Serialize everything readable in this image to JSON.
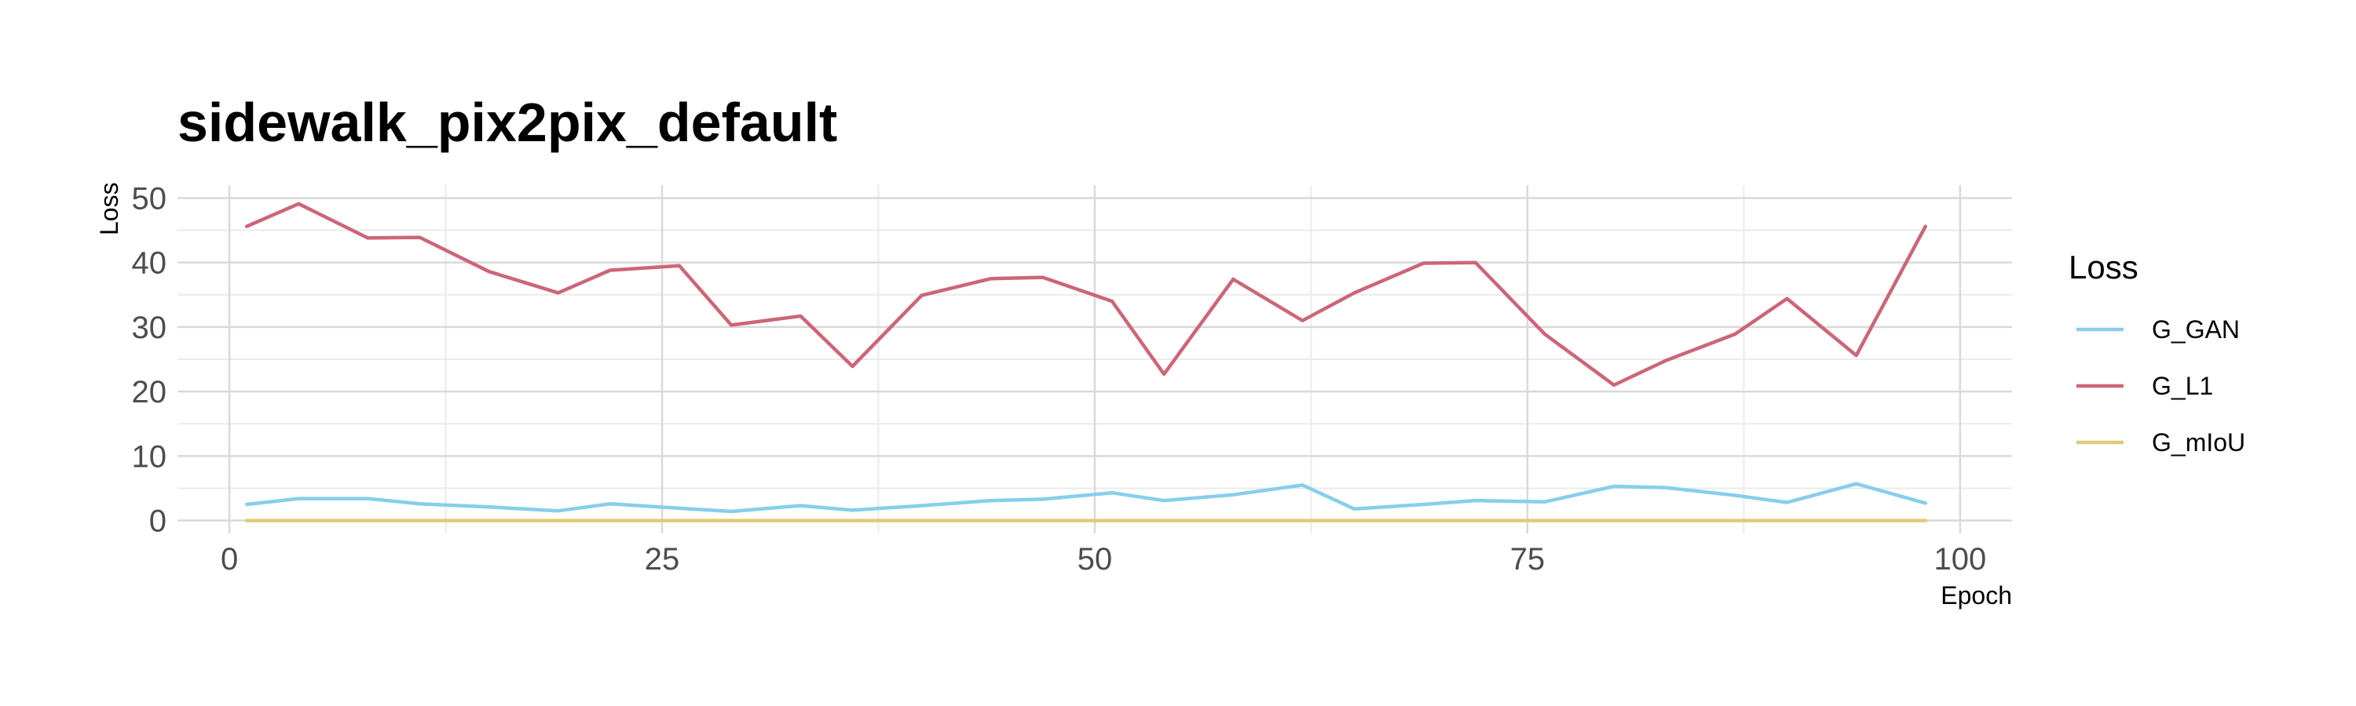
{
  "chart_data": {
    "type": "line",
    "title": "sidewalk_pix2pix_default",
    "xlabel": "Epoch",
    "ylabel": "Loss",
    "xlim": [
      -3,
      103
    ],
    "ylim": [
      -2,
      52
    ],
    "x_major_ticks": [
      0,
      25,
      50,
      75,
      100
    ],
    "x_minor_ticks": [
      12.5,
      37.5,
      62.5,
      87.5
    ],
    "y_major_ticks": [
      0,
      10,
      20,
      30,
      40,
      50
    ],
    "y_minor_ticks": [
      5,
      15,
      25,
      35,
      45
    ],
    "grid": true,
    "legend": {
      "title": "Loss",
      "position": "right"
    },
    "x": [
      1,
      4,
      8,
      11,
      15,
      19,
      22,
      26,
      29,
      33,
      36,
      40,
      44,
      47,
      51,
      54,
      58,
      62,
      65,
      69,
      72,
      76,
      80,
      83,
      87,
      90,
      94,
      98
    ],
    "series": [
      {
        "name": "G_GAN",
        "color": "#87CEEB",
        "values": [
          2.5,
          3.4,
          3.4,
          2.6,
          2.1,
          1.5,
          2.6,
          1.9,
          1.4,
          2.3,
          1.6,
          2.3,
          3.1,
          3.3,
          4.3,
          3.1,
          4.0,
          5.5,
          1.8,
          2.5,
          3.1,
          2.9,
          5.3,
          5.1,
          3.9,
          2.8,
          5.7,
          2.7
        ]
      },
      {
        "name": "G_L1",
        "color": "#CC6677",
        "values": [
          45.6,
          49.1,
          43.8,
          43.9,
          38.6,
          35.3,
          38.8,
          39.5,
          30.3,
          31.7,
          23.9,
          34.9,
          37.5,
          37.7,
          34.0,
          22.7,
          37.4,
          31.0,
          35.3,
          39.9,
          40.0,
          28.9,
          21.0,
          24.8,
          28.9,
          34.4,
          25.6,
          45.6
        ]
      },
      {
        "name": "G_mIoU",
        "color": "#DDCC77",
        "values": [
          0,
          0,
          0,
          0,
          0,
          0,
          0,
          0,
          0,
          0,
          0,
          0,
          0,
          0,
          0,
          0,
          0,
          0,
          0,
          0,
          0,
          0,
          0,
          0,
          0,
          0,
          0,
          0
        ]
      }
    ]
  }
}
